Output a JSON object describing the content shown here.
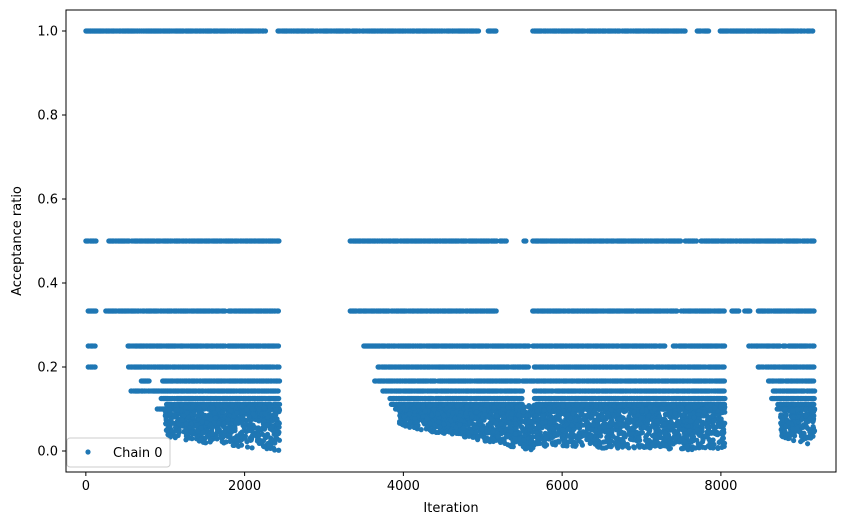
{
  "chart_data": {
    "type": "scatter",
    "title": "",
    "xlabel": "Iteration",
    "ylabel": "Acceptance ratio",
    "xlim": [
      -250,
      9450
    ],
    "ylim": [
      -0.05,
      1.05
    ],
    "x_ticks": [
      0,
      2000,
      4000,
      6000,
      8000
    ],
    "x_tick_labels": [
      "0",
      "2000",
      "4000",
      "6000",
      "8000"
    ],
    "y_ticks": [
      0.0,
      0.2,
      0.4,
      0.6,
      0.8,
      1.0
    ],
    "y_tick_labels": [
      "0.0",
      "0.2",
      "0.4",
      "0.6",
      "0.8",
      "1.0"
    ],
    "grid": false,
    "legend": {
      "position": "lower-left",
      "entries": [
        "Chain 0"
      ]
    },
    "colors": {
      "series": "#1f77b4"
    },
    "series": [
      {
        "name": "Chain 0",
        "marker": "circle",
        "level_segments": [
          {
            "y": 1.0,
            "ranges": [
              [
                0,
                2270
              ],
              [
                2420,
                4950
              ],
              [
                5070,
                5170
              ],
              [
                5630,
                7550
              ],
              [
                7700,
                7850
              ],
              [
                7990,
                9180
              ]
            ]
          },
          {
            "y": 0.5,
            "ranges": [
              [
                0,
                130
              ],
              [
                290,
                2440
              ],
              [
                3330,
                5300
              ],
              [
                5520,
                5560
              ],
              [
                5630,
                7500
              ],
              [
                7550,
                7700
              ],
              [
                7750,
                9180
              ]
            ]
          },
          {
            "y": 0.3333,
            "ranges": [
              [
                30,
                130
              ],
              [
                250,
                2440
              ],
              [
                3330,
                5170
              ],
              [
                5630,
                7450
              ],
              [
                7500,
                8050
              ],
              [
                8130,
                8230
              ],
              [
                8300,
                8370
              ],
              [
                8470,
                9180
              ]
            ]
          },
          {
            "y": 0.25,
            "ranges": [
              [
                30,
                130
              ],
              [
                530,
                2440
              ],
              [
                3500,
                5580
              ],
              [
                5630,
                7300
              ],
              [
                7400,
                8050
              ],
              [
                8350,
                9180
              ]
            ]
          },
          {
            "y": 0.2,
            "ranges": [
              [
                30,
                130
              ],
              [
                530,
                2440
              ],
              [
                3680,
                5580
              ],
              [
                5650,
                8050
              ],
              [
                8470,
                9180
              ]
            ]
          },
          {
            "y": 0.1667,
            "ranges": [
              [
                700,
                800
              ],
              [
                960,
                2440
              ],
              [
                3640,
                5470
              ],
              [
                5500,
                8050
              ],
              [
                8600,
                9180
              ]
            ]
          },
          {
            "y": 0.1429,
            "ranges": [
              [
                560,
                2440
              ],
              [
                3740,
                5500
              ],
              [
                5650,
                8050
              ],
              [
                8660,
                9180
              ]
            ]
          },
          {
            "y": 0.125,
            "ranges": [
              [
                950,
                2440
              ],
              [
                3830,
                5500
              ],
              [
                5650,
                8050
              ],
              [
                8640,
                9180
              ]
            ]
          },
          {
            "y": 0.1111,
            "ranges": [
              [
                1000,
                2440
              ],
              [
                3850,
                5500
              ],
              [
                5670,
                8050
              ],
              [
                8700,
                9180
              ]
            ]
          },
          {
            "y": 0.1,
            "ranges": [
              [
                900,
                2440
              ],
              [
                3900,
                5500
              ],
              [
                5700,
                8050
              ],
              [
                8700,
                9180
              ]
            ]
          }
        ],
        "low_clusters": [
          {
            "x_range": [
              1000,
              2440
            ],
            "y_top": 0.11,
            "y_bottom": 0.03,
            "y_floor": 0.0,
            "count": 700
          },
          {
            "x_range": [
              3950,
              5650
            ],
            "y_top": 0.11,
            "y_bottom": 0.06,
            "y_floor": 0.0,
            "count": 1050
          },
          {
            "x_range": [
              5650,
              8050
            ],
            "y_top": 0.11,
            "y_bottom": 0.01,
            "y_floor": 0.0,
            "count": 1300
          },
          {
            "x_range": [
              8750,
              9180
            ],
            "y_top": 0.1,
            "y_bottom": 0.03,
            "y_floor": 0.01,
            "count": 180
          }
        ]
      }
    ]
  }
}
